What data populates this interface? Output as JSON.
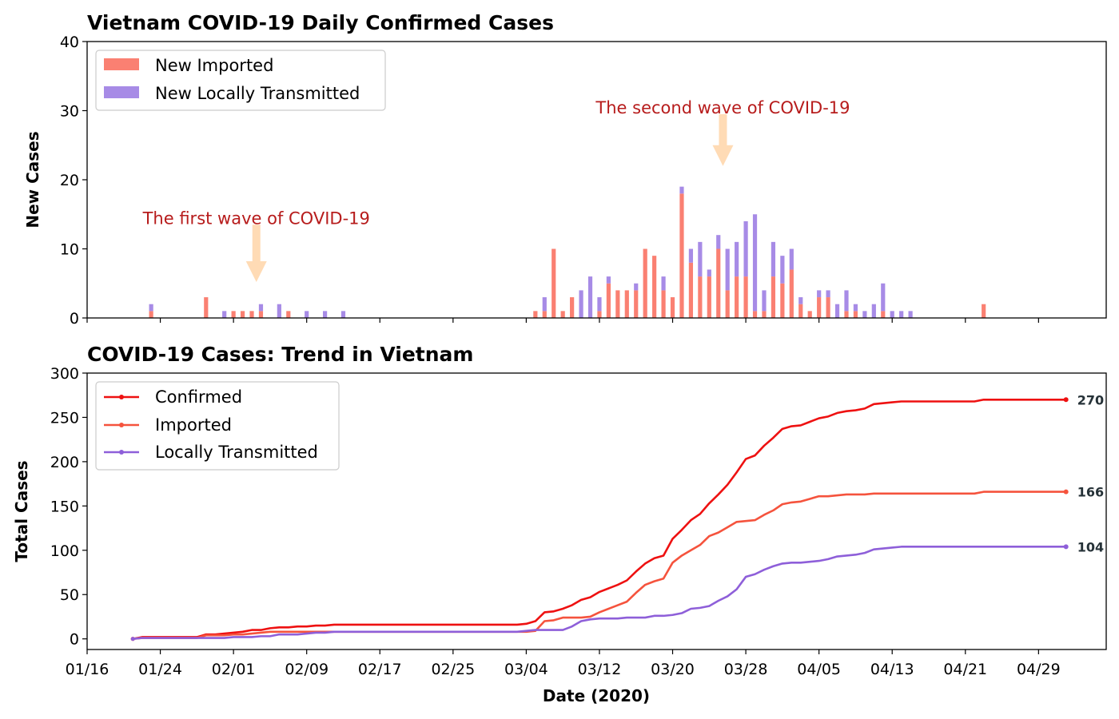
{
  "chart_data": [
    {
      "type": "bar",
      "stacked": true,
      "title": "Vietnam COVID-19 Daily Confirmed Cases",
      "ylabel": "New Cases",
      "xlabel": "",
      "ylim": [
        0,
        40
      ],
      "yticks": [
        "0",
        "10",
        "20",
        "30",
        "40"
      ],
      "x_range_days": [
        0,
        91.5
      ],
      "colors": {
        "imported": "#fa8072",
        "local": "#a78be6"
      },
      "legend": {
        "position": "top-left",
        "labels": [
          "New Imported",
          "New Locally Transmitted"
        ]
      },
      "series": [
        {
          "name": "New Imported",
          "key": "imported",
          "color": "#fa8072"
        },
        {
          "name": "New Locally Transmitted",
          "key": "local",
          "color": "#a78be6"
        }
      ],
      "points": [
        [
          7,
          1,
          1
        ],
        [
          13,
          3,
          0
        ],
        [
          15,
          0,
          1
        ],
        [
          16,
          1,
          0
        ],
        [
          17,
          1,
          0
        ],
        [
          18,
          1,
          0
        ],
        [
          19,
          1,
          1
        ],
        [
          21,
          0,
          2
        ],
        [
          22,
          1,
          0
        ],
        [
          24,
          0,
          1
        ],
        [
          26,
          0,
          1
        ],
        [
          28,
          0,
          1
        ],
        [
          49,
          1,
          0
        ],
        [
          50,
          1,
          2
        ],
        [
          51,
          10,
          0
        ],
        [
          52,
          1,
          0
        ],
        [
          53,
          3,
          0
        ],
        [
          54,
          0,
          4
        ],
        [
          55,
          0,
          6
        ],
        [
          56,
          1,
          2
        ],
        [
          57,
          5,
          1
        ],
        [
          58,
          4,
          0
        ],
        [
          59,
          4,
          0
        ],
        [
          60,
          4,
          1
        ],
        [
          61,
          10,
          0
        ],
        [
          62,
          9,
          0
        ],
        [
          63,
          4,
          2
        ],
        [
          64,
          3,
          0
        ],
        [
          65,
          18,
          1
        ],
        [
          66,
          8,
          2
        ],
        [
          67,
          6,
          5
        ],
        [
          68,
          6,
          1
        ],
        [
          69,
          10,
          2
        ],
        [
          70,
          4,
          6
        ],
        [
          71,
          6,
          5
        ],
        [
          72,
          6,
          8
        ],
        [
          73,
          1,
          14
        ],
        [
          74,
          1,
          3
        ],
        [
          75,
          6,
          5
        ],
        [
          76,
          5,
          4
        ],
        [
          77,
          7,
          3
        ],
        [
          78,
          2,
          1
        ],
        [
          79,
          1,
          0
        ],
        [
          80,
          3,
          1
        ],
        [
          81,
          3,
          1
        ],
        [
          82,
          0,
          2
        ],
        [
          83,
          1,
          3
        ],
        [
          84,
          1,
          1
        ],
        [
          85,
          0,
          1
        ],
        [
          86,
          0,
          2
        ],
        [
          87,
          1,
          4
        ],
        [
          88,
          0,
          1
        ],
        [
          89,
          0,
          1
        ],
        [
          90,
          0,
          1
        ],
        [
          98,
          2,
          0
        ]
      ],
      "annotations": [
        {
          "text": "The first wave of COVID-19",
          "x_day": 18.5,
          "y": 14.5,
          "arrow_from": 13.5,
          "arrow_to": 5.2,
          "color": "#b71c1c"
        },
        {
          "text": "The second wave of COVID-19",
          "x_day": 69.5,
          "y": 30.5,
          "arrow_from": 29.5,
          "arrow_to": 22.0,
          "color": "#b71c1c"
        }
      ]
    },
    {
      "type": "line",
      "title": "COVID-19 Cases: Trend in Vietnam",
      "ylabel": "Total Cases",
      "xlabel": "Date (2020)",
      "ylim": [
        -12,
        300
      ],
      "yticks": [
        "0",
        "50",
        "100",
        "150",
        "200",
        "250",
        "300"
      ],
      "xticks": [
        "01/16",
        "01/24",
        "02/01",
        "02/09",
        "02/17",
        "02/25",
        "03/04",
        "03/12",
        "03/20",
        "03/28",
        "04/05",
        "04/13",
        "04/21",
        "04/29"
      ],
      "xtick_days": [
        0,
        8,
        16,
        24,
        32,
        40,
        48,
        56,
        64,
        72,
        80,
        88,
        96,
        104
      ],
      "legend": {
        "position": "top-left",
        "labels": [
          "Confirmed",
          "Imported",
          "Locally Transmitted"
        ]
      },
      "series": [
        {
          "name": "Confirmed",
          "color": "#ee1111",
          "end_label": "270",
          "points": [
            [
              5,
              0
            ],
            [
              6,
              2
            ],
            [
              12,
              2
            ],
            [
              13,
              5
            ],
            [
              14,
              5
            ],
            [
              15,
              6
            ],
            [
              16,
              7
            ],
            [
              17,
              8
            ],
            [
              18,
              10
            ],
            [
              19,
              10
            ],
            [
              20,
              12
            ],
            [
              21,
              13
            ],
            [
              22,
              13
            ],
            [
              23,
              14
            ],
            [
              24,
              14
            ],
            [
              25,
              15
            ],
            [
              26,
              15
            ],
            [
              27,
              16
            ],
            [
              47,
              16
            ],
            [
              48,
              17
            ],
            [
              49,
              20
            ],
            [
              50,
              30
            ],
            [
              51,
              31
            ],
            [
              52,
              34
            ],
            [
              53,
              38
            ],
            [
              54,
              44
            ],
            [
              55,
              47
            ],
            [
              56,
              53
            ],
            [
              57,
              57
            ],
            [
              58,
              61
            ],
            [
              59,
              66
            ],
            [
              60,
              76
            ],
            [
              61,
              85
            ],
            [
              62,
              91
            ],
            [
              63,
              94
            ],
            [
              64,
              113
            ],
            [
              65,
              123
            ],
            [
              66,
              134
            ],
            [
              67,
              141
            ],
            [
              68,
              153
            ],
            [
              69,
              163
            ],
            [
              70,
              174
            ],
            [
              71,
              188
            ],
            [
              72,
              203
            ],
            [
              73,
              207
            ],
            [
              74,
              218
            ],
            [
              75,
              227
            ],
            [
              76,
              237
            ],
            [
              77,
              240
            ],
            [
              78,
              241
            ],
            [
              79,
              245
            ],
            [
              80,
              249
            ],
            [
              81,
              251
            ],
            [
              82,
              255
            ],
            [
              83,
              257
            ],
            [
              84,
              258
            ],
            [
              85,
              260
            ],
            [
              86,
              265
            ],
            [
              87,
              266
            ],
            [
              88,
              267
            ],
            [
              89,
              268
            ],
            [
              97,
              268
            ],
            [
              98,
              270
            ],
            [
              107,
              270
            ]
          ]
        },
        {
          "name": "Imported",
          "color": "#f5533d",
          "end_label": "166",
          "points": [
            [
              5,
              0
            ],
            [
              6,
              1
            ],
            [
              12,
              1
            ],
            [
              13,
              4
            ],
            [
              14,
              4
            ],
            [
              15,
              4
            ],
            [
              16,
              5
            ],
            [
              17,
              5
            ],
            [
              18,
              6
            ],
            [
              19,
              7
            ],
            [
              20,
              8
            ],
            [
              21,
              8
            ],
            [
              22,
              8
            ],
            [
              23,
              8
            ],
            [
              24,
              8
            ],
            [
              25,
              8
            ],
            [
              26,
              8
            ],
            [
              27,
              8
            ],
            [
              47,
              8
            ],
            [
              48,
              8
            ],
            [
              49,
              9
            ],
            [
              50,
              20
            ],
            [
              51,
              21
            ],
            [
              52,
              24
            ],
            [
              53,
              24
            ],
            [
              54,
              24
            ],
            [
              55,
              25
            ],
            [
              56,
              30
            ],
            [
              57,
              34
            ],
            [
              58,
              38
            ],
            [
              59,
              42
            ],
            [
              60,
              52
            ],
            [
              61,
              61
            ],
            [
              62,
              65
            ],
            [
              63,
              68
            ],
            [
              64,
              86
            ],
            [
              65,
              94
            ],
            [
              66,
              100
            ],
            [
              67,
              106
            ],
            [
              68,
              116
            ],
            [
              69,
              120
            ],
            [
              70,
              126
            ],
            [
              71,
              132
            ],
            [
              72,
              133
            ],
            [
              73,
              134
            ],
            [
              74,
              140
            ],
            [
              75,
              145
            ],
            [
              76,
              152
            ],
            [
              77,
              154
            ],
            [
              78,
              155
            ],
            [
              79,
              158
            ],
            [
              80,
              161
            ],
            [
              81,
              161
            ],
            [
              82,
              162
            ],
            [
              83,
              163
            ],
            [
              84,
              163
            ],
            [
              85,
              163
            ],
            [
              86,
              164
            ],
            [
              87,
              164
            ],
            [
              88,
              164
            ],
            [
              89,
              164
            ],
            [
              97,
              164
            ],
            [
              98,
              166
            ],
            [
              107,
              166
            ]
          ]
        },
        {
          "name": "Locally Transmitted",
          "color": "#8e5fd9",
          "end_label": "104",
          "points": [
            [
              5,
              0
            ],
            [
              6,
              1
            ],
            [
              14,
              1
            ],
            [
              15,
              1
            ],
            [
              16,
              2
            ],
            [
              17,
              2
            ],
            [
              18,
              2
            ],
            [
              19,
              3
            ],
            [
              20,
              3
            ],
            [
              21,
              5
            ],
            [
              22,
              5
            ],
            [
              23,
              5
            ],
            [
              24,
              6
            ],
            [
              25,
              7
            ],
            [
              26,
              7
            ],
            [
              27,
              8
            ],
            [
              47,
              8
            ],
            [
              48,
              9
            ],
            [
              49,
              10
            ],
            [
              50,
              10
            ],
            [
              51,
              10
            ],
            [
              52,
              10
            ],
            [
              53,
              14
            ],
            [
              54,
              20
            ],
            [
              55,
              22
            ],
            [
              56,
              23
            ],
            [
              57,
              23
            ],
            [
              58,
              23
            ],
            [
              59,
              24
            ],
            [
              60,
              24
            ],
            [
              61,
              24
            ],
            [
              62,
              26
            ],
            [
              63,
              26
            ],
            [
              64,
              27
            ],
            [
              65,
              29
            ],
            [
              66,
              34
            ],
            [
              67,
              35
            ],
            [
              68,
              37
            ],
            [
              69,
              43
            ],
            [
              70,
              48
            ],
            [
              71,
              56
            ],
            [
              72,
              70
            ],
            [
              73,
              73
            ],
            [
              74,
              78
            ],
            [
              75,
              82
            ],
            [
              76,
              85
            ],
            [
              77,
              86
            ],
            [
              78,
              86
            ],
            [
              79,
              87
            ],
            [
              80,
              88
            ],
            [
              81,
              90
            ],
            [
              82,
              93
            ],
            [
              83,
              94
            ],
            [
              84,
              95
            ],
            [
              85,
              97
            ],
            [
              86,
              101
            ],
            [
              87,
              102
            ],
            [
              88,
              103
            ],
            [
              89,
              104
            ],
            [
              107,
              104
            ]
          ]
        }
      ]
    }
  ]
}
